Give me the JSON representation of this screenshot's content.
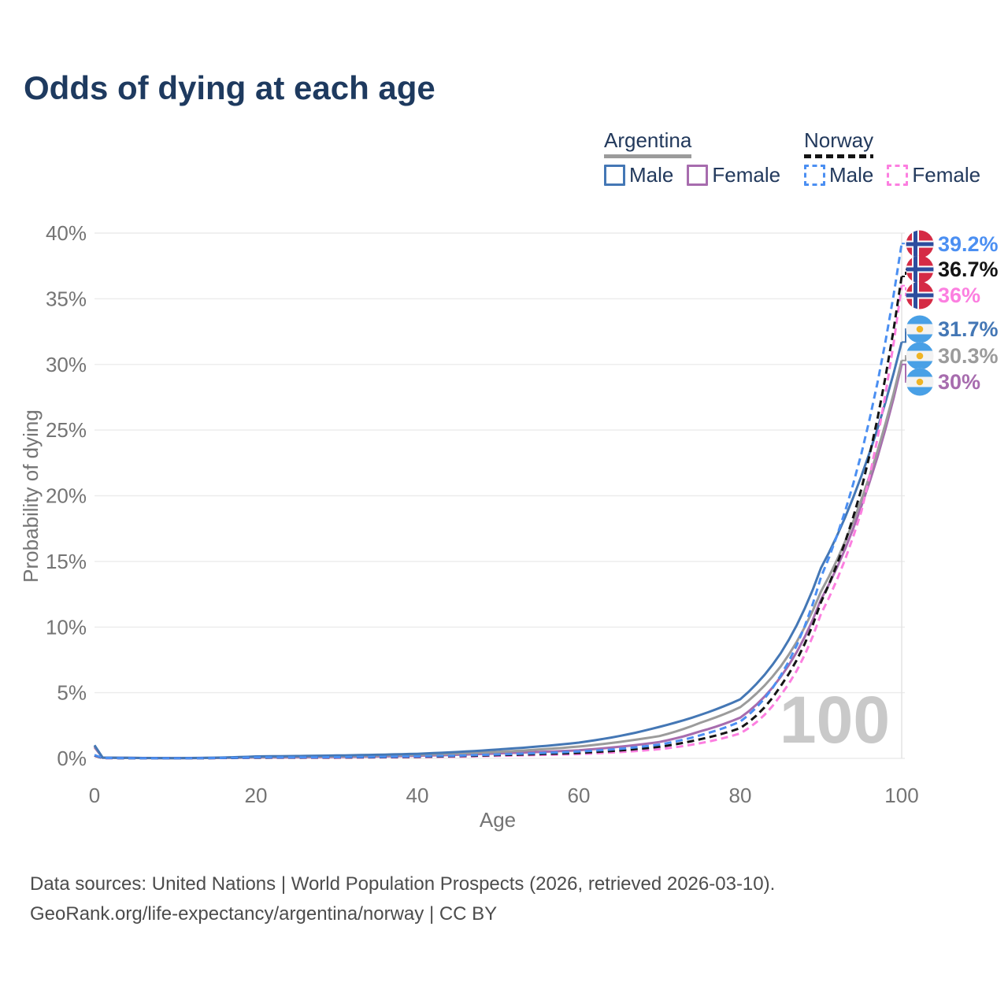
{
  "title": "Odds of dying at each age",
  "legend": {
    "groups": [
      {
        "id": "argentina",
        "label": "Argentina",
        "underline": {
          "style": "solid",
          "color": "#9b9b9b"
        },
        "items": [
          {
            "label": "Male",
            "color": "#4477b5",
            "box_style": "solid"
          },
          {
            "label": "Female",
            "color": "#a76cae",
            "box_style": "solid"
          }
        ]
      },
      {
        "id": "norway",
        "label": "Norway",
        "underline": {
          "style": "dashed",
          "color": "#141414"
        },
        "items": [
          {
            "label": "Male",
            "color": "#4b8ff2",
            "box_style": "dashed"
          },
          {
            "label": "Female",
            "color": "#fc7fe0",
            "box_style": "dashed"
          }
        ]
      }
    ]
  },
  "chart_data": {
    "type": "line",
    "title": "Odds of dying at each age",
    "xlabel": "Age",
    "ylabel": "Probability of dying",
    "xlim": [
      0,
      100
    ],
    "ylim": [
      0,
      40
    ],
    "x_ticks": [
      0,
      20,
      40,
      60,
      80,
      100
    ],
    "y_ticks": [
      0,
      5,
      10,
      15,
      20,
      25,
      30,
      35,
      40
    ],
    "y_tick_labels": [
      "0%",
      "5%",
      "10%",
      "15%",
      "20%",
      "25%",
      "30%",
      "35%",
      "40%"
    ],
    "grid": "horizontal",
    "legend_position": "top-right",
    "hover_marker": {
      "text": "100",
      "color": "#c9c9c9"
    },
    "ages": [
      0,
      1,
      10,
      20,
      30,
      40,
      50,
      60,
      65,
      70,
      75,
      80,
      85,
      90,
      95,
      100
    ],
    "series": [
      {
        "name": "Norway Male",
        "country": "norway",
        "style": "dashed",
        "color": "#4b8ff2",
        "end_label": "39.2%",
        "flag": "norway",
        "values": [
          0.25,
          0.03,
          0.012,
          0.07,
          0.09,
          0.15,
          0.3,
          0.52,
          0.72,
          1.05,
          1.75,
          2.8,
          6.3,
          13.8,
          23.2,
          39.2
        ]
      },
      {
        "name": "Norway",
        "country": "norway",
        "style": "dashed",
        "color": "#141414",
        "end_label": "36.7%",
        "flag": "norway",
        "values": [
          0.22,
          0.025,
          0.01,
          0.055,
          0.07,
          0.12,
          0.25,
          0.42,
          0.6,
          0.88,
          1.45,
          2.3,
          5.5,
          11.9,
          20.5,
          36.7
        ]
      },
      {
        "name": "Norway Female",
        "country": "norway",
        "style": "dashed",
        "color": "#fc7fe0",
        "end_label": "36%",
        "flag": "norway",
        "values": [
          0.2,
          0.02,
          0.009,
          0.04,
          0.05,
          0.09,
          0.2,
          0.33,
          0.48,
          0.7,
          1.15,
          1.9,
          4.8,
          11.0,
          18.8,
          36.0
        ]
      },
      {
        "name": "Argentina Male",
        "country": "argentina",
        "style": "solid",
        "color": "#4477b5",
        "end_label": "31.7%",
        "flag": "argentina",
        "values": [
          1.0,
          0.06,
          0.02,
          0.15,
          0.22,
          0.35,
          0.68,
          1.2,
          1.7,
          2.4,
          3.3,
          4.5,
          8.0,
          14.5,
          21.5,
          31.7
        ]
      },
      {
        "name": "Argentina",
        "country": "argentina",
        "style": "solid",
        "color": "#9b9b9b",
        "end_label": "30.3%",
        "flag": "argentina",
        "values": [
          0.95,
          0.055,
          0.018,
          0.11,
          0.16,
          0.27,
          0.5,
          0.9,
          1.25,
          1.7,
          2.7,
          3.9,
          7.0,
          12.7,
          19.7,
          30.3
        ]
      },
      {
        "name": "Argentina Female",
        "country": "argentina",
        "style": "solid",
        "color": "#a76cae",
        "end_label": "30%",
        "flag": "argentina",
        "values": [
          0.85,
          0.05,
          0.015,
          0.07,
          0.1,
          0.2,
          0.38,
          0.62,
          0.88,
          1.25,
          2.05,
          3.1,
          6.2,
          12.1,
          19.2,
          30.0
        ]
      }
    ]
  },
  "flags": {
    "norway": {
      "red": "#d52b45",
      "blue": "#2d4d9e",
      "white": "#ffffff"
    },
    "argentina": {
      "blue": "#49a0e6",
      "white": "#f2f2f2",
      "sun": "#f0b424"
    }
  },
  "footer": {
    "line1": "Data sources: United Nations | World Population Prospects (2026, retrieved 2026-03-10).",
    "line2": "GeoRank.org/life-expectancy/argentina/norway | CC BY"
  }
}
